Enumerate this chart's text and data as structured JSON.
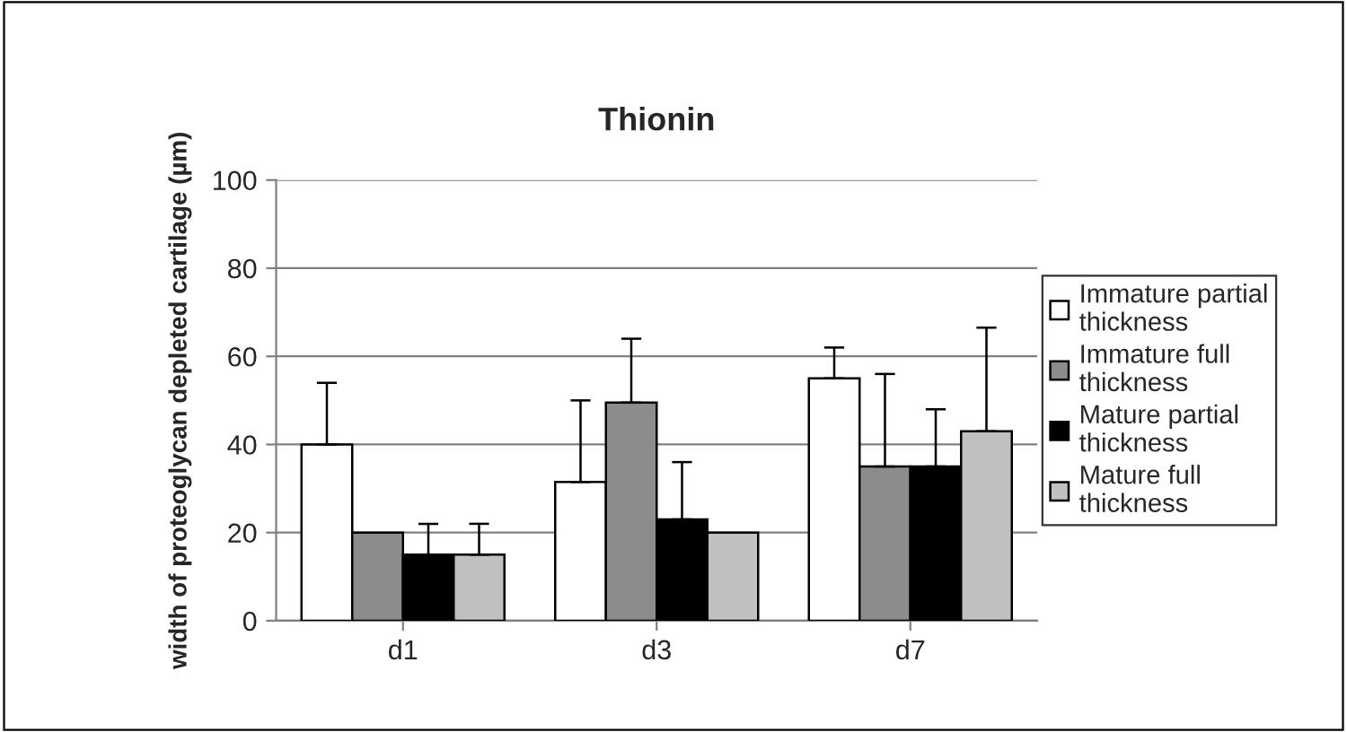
{
  "chart_data": {
    "type": "bar",
    "title": "Thionin",
    "ylabel": "width of proteoglycan depleted cartilage (µm)",
    "categories": [
      "d1",
      "d3",
      "d7"
    ],
    "series": [
      {
        "name": "Immature partial thickness",
        "color": "#ffffff",
        "values": [
          40,
          31.5,
          55
        ],
        "errors": [
          [
            40,
            54
          ],
          [
            31.5,
            50
          ],
          [
            55,
            62
          ]
        ]
      },
      {
        "name": "Immature full thickness",
        "color": "#8c8c8c",
        "values": [
          20,
          49.5,
          35
        ],
        "errors": [
          null,
          [
            49.5,
            64
          ],
          [
            35,
            56
          ]
        ]
      },
      {
        "name": "Mature partial thickness",
        "color": "#000000",
        "values": [
          15,
          23,
          35
        ],
        "errors": [
          [
            15,
            22
          ],
          [
            23,
            36
          ],
          [
            35,
            48
          ]
        ]
      },
      {
        "name": "Mature full thickness",
        "color": "#c0c0c0",
        "values": [
          15,
          20,
          43
        ],
        "errors": [
          [
            15,
            22
          ],
          null,
          [
            43,
            66.5
          ]
        ]
      }
    ],
    "ylim": [
      0,
      100
    ],
    "yticks": [
      0,
      20,
      40,
      60,
      80,
      100
    ],
    "grid": "y",
    "legend": "right"
  }
}
